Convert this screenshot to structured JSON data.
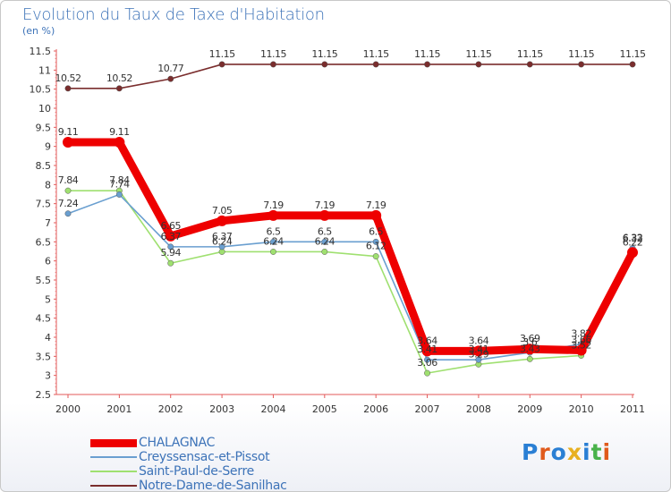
{
  "chart_data": {
    "type": "line",
    "title": "Evolution du Taux de Taxe d'Habitation",
    "ylabel": "(en %)",
    "xlabel": "",
    "ylim": [
      2.5,
      11.5
    ],
    "yticks": [
      "2.5",
      "3",
      "3.5",
      "4",
      "4.5",
      "5",
      "5.5",
      "6",
      "6.5",
      "7",
      "7.5",
      "8",
      "8.5",
      "9",
      "9.5",
      "10",
      "10.5",
      "11",
      "11.5"
    ],
    "categories": [
      "2000",
      "2001",
      "2002",
      "2003",
      "2004",
      "2005",
      "2006",
      "2007",
      "2008",
      "2009",
      "2010",
      "2011"
    ],
    "series": [
      {
        "name": "Notre-Dame-de-Sanilhac",
        "color": "#7a2d2d",
        "values": [
          10.52,
          10.52,
          10.77,
          11.15,
          11.15,
          11.15,
          11.15,
          11.15,
          11.15,
          11.15,
          11.15,
          11.15
        ],
        "labels": [
          "10.52",
          "10.52",
          "10.77",
          "11.15",
          "11.15",
          "11.15",
          "11.15",
          "11.15",
          "11.15",
          "11.15",
          "11.15",
          "11.15"
        ]
      },
      {
        "name": "Saint-Paul-de-Serre",
        "color": "#9fe070",
        "values": [
          7.84,
          7.84,
          5.94,
          6.24,
          6.24,
          6.24,
          6.12,
          3.06,
          3.29,
          3.43,
          3.52,
          6.32
        ],
        "labels": [
          "7.84",
          "7.84",
          "5.94",
          "6.24",
          "6.24",
          "6.24",
          "6.12",
          "3.06",
          "3.29",
          "3.43",
          "3.52",
          "6.32"
        ]
      },
      {
        "name": "Creyssensac-et-Pissot",
        "color": "#6a9fd0",
        "values": [
          7.24,
          7.74,
          6.37,
          6.37,
          6.5,
          6.5,
          6.5,
          3.41,
          3.41,
          3.6,
          3.82,
          6.33
        ],
        "labels": [
          "7.24",
          "7.74",
          "6.37",
          "6.37",
          "6.5",
          "6.5",
          "6.5",
          "3.41",
          "3.41",
          "3.6",
          "3.82",
          "6.33"
        ]
      },
      {
        "name": "CHALAGNAC",
        "color": "#ee0000",
        "values": [
          9.11,
          9.11,
          6.65,
          7.05,
          7.19,
          7.19,
          7.19,
          3.64,
          3.64,
          3.69,
          3.66,
          6.22
        ],
        "labels": [
          "9.11",
          "9.11",
          "6.65",
          "7.05",
          "7.19",
          "7.19",
          "7.19",
          "3.64",
          "3.64",
          "3.69",
          "3.66",
          "6.22"
        ]
      }
    ],
    "legend_order": [
      "CHALAGNAC",
      "Creyssensac-et-Pissot",
      "Saint-Paul-de-Serre",
      "Notre-Dame-de-Sanilhac"
    ],
    "grid": false,
    "legend_position": "bottom-left"
  },
  "logo": {
    "letters": [
      "P",
      "r",
      "o",
      "x",
      "i",
      "t",
      "i"
    ],
    "colors": [
      "#2a7fd4",
      "#e05a1c",
      "#2a7fd4",
      "#e8b020",
      "#2a7fd4",
      "#49b24a",
      "#e05a1c"
    ]
  }
}
